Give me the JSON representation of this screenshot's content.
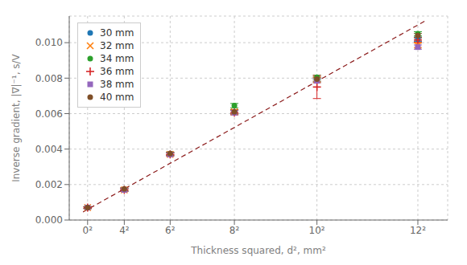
{
  "chart_data": {
    "type": "scatter",
    "xlabel": "Thickness squared, d², mm²",
    "ylabel": "Inverse gradient, |∇|⁻¹, s/V",
    "xlim": [
      -8,
      157
    ],
    "ylim": [
      0,
      0.0115
    ],
    "xticks": [
      {
        "value": 0,
        "label": "0²"
      },
      {
        "value": 16,
        "label": "4²"
      },
      {
        "value": 36,
        "label": "6²"
      },
      {
        "value": 64,
        "label": "8²"
      },
      {
        "value": 100,
        "label": "10²"
      },
      {
        "value": 144,
        "label": "12²"
      }
    ],
    "yticks": [
      {
        "value": 0,
        "label": "0.000"
      },
      0.002,
      0.004,
      0.006,
      0.008,
      {
        "value": 0.01,
        "label": "0.010"
      }
    ],
    "grid": true,
    "legend": "upper left",
    "series": [
      {
        "type": "line",
        "color": "#8b1a1a",
        "line_style": "dashed",
        "x": [
          -2,
          148
        ],
        "values": [
          0.0004556,
          0.0112856
        ]
      },
      {
        "name": "30 mm",
        "color": "#1f77b4",
        "marker": "circle",
        "x": [
          0,
          16,
          36,
          64,
          100,
          144
        ],
        "values": [
          0.0007,
          0.0017,
          0.0037,
          0.0061,
          0.0079,
          0.0102
        ],
        "yerr": [
          5e-05,
          8e-05,
          8e-05,
          0.00012,
          0.00012,
          0.00012
        ]
      },
      {
        "name": "32 mm",
        "color": "#ff7f0e",
        "marker": "cross",
        "x": [
          0,
          16,
          36,
          64,
          100,
          144
        ],
        "values": [
          0.0007,
          0.0017,
          0.0037,
          0.0061,
          0.0079,
          0.00985
        ],
        "yerr": [
          5e-05,
          8e-05,
          8e-05,
          0.00012,
          0.00012,
          0.00012
        ]
      },
      {
        "name": "34 mm",
        "color": "#2ca02c",
        "marker": "circle",
        "x": [
          0,
          16,
          36,
          64,
          100,
          144
        ],
        "values": [
          0.0007,
          0.0017,
          0.00375,
          0.00645,
          0.00805,
          0.0105
        ],
        "yerr": [
          5e-05,
          8e-05,
          8e-05,
          0.00012,
          0.00012,
          0.00012
        ]
      },
      {
        "name": "36 mm",
        "color": "#d62728",
        "marker": "plus",
        "x": [
          0,
          16,
          36,
          64,
          100,
          144
        ],
        "values": [
          0.0007,
          0.0017,
          0.0037,
          0.00605,
          0.0075,
          0.01015
        ],
        "yerr": [
          5e-05,
          8e-05,
          8e-05,
          0.00012,
          0.00065,
          0.00012
        ]
      },
      {
        "name": "38 mm",
        "color": "#9467bd",
        "marker": "square",
        "x": [
          0,
          16,
          36,
          64,
          100,
          144
        ],
        "values": [
          0.0007,
          0.0017,
          0.0037,
          0.00605,
          0.00785,
          0.00975
        ],
        "yerr": [
          5e-05,
          8e-05,
          8e-05,
          0.00012,
          0.00012,
          0.00012
        ]
      },
      {
        "name": "40 mm",
        "color": "#7f4f28",
        "marker": "circle",
        "x": [
          0,
          16,
          36,
          64,
          100,
          144
        ],
        "values": [
          0.0007,
          0.00175,
          0.00375,
          0.0061,
          0.00795,
          0.0104
        ],
        "yerr": [
          5e-05,
          8e-05,
          8e-05,
          0.00012,
          0.00012,
          0.00012
        ]
      }
    ]
  }
}
